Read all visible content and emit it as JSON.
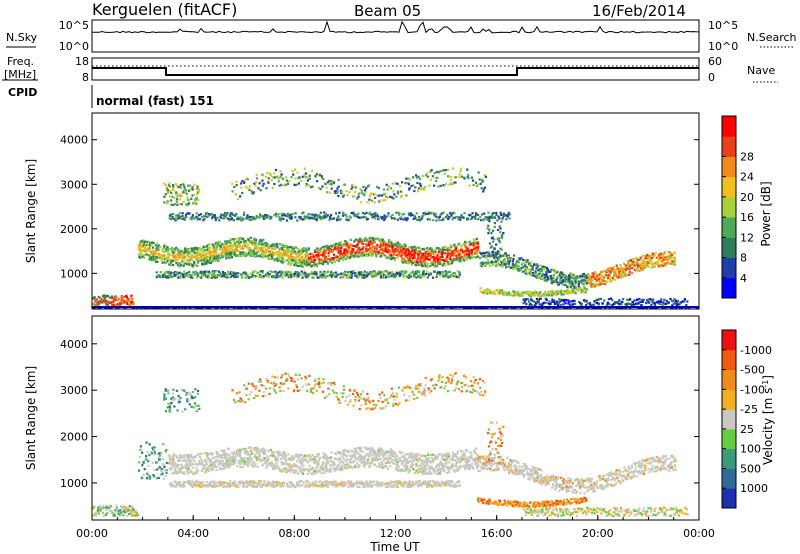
{
  "header": {
    "station": "Kerguelen (fitACF)",
    "beam": "Beam 05",
    "date": "16/Feb/2014"
  },
  "left_labels": {
    "nsky": "N.Sky",
    "freq_line1": "Freq.",
    "freq_line2": "[MHz]",
    "cpid": "CPID"
  },
  "right_labels": {
    "nsearch": "N.Search",
    "nave": "Nave"
  },
  "cpid_text": "normal (fast) 151",
  "noise_panel": {
    "ticks_left": [
      "10^5",
      "10^0"
    ],
    "ticks_right": [
      "10^5",
      "10^0"
    ]
  },
  "freq_panel": {
    "ticks_left": [
      "18",
      "8"
    ],
    "ticks_right": [
      "60",
      "0"
    ]
  },
  "chart_data": [
    {
      "type": "heatmap",
      "title": "",
      "ylabel": "Slant Range [km]",
      "xlabel": "",
      "ylim": [
        200,
        4600
      ],
      "yticks": [
        "1000",
        "2000",
        "3000",
        "4000"
      ],
      "colorbar": {
        "label": "Power [dB]",
        "ticks": [
          "4",
          "8",
          "12",
          "16",
          "20",
          "24",
          "28"
        ],
        "range": [
          0,
          32
        ],
        "colors": [
          "#0000ff",
          "#1f3fa8",
          "#2e7d5a",
          "#4daa57",
          "#a7d23b",
          "#f0c020",
          "#f08a1a",
          "#e8401a",
          "#ff0000"
        ]
      }
    },
    {
      "type": "heatmap",
      "title": "",
      "ylabel": "Slant Range [km]",
      "xlabel": "Time UT",
      "ylim": [
        200,
        4600
      ],
      "yticks": [
        "1000",
        "2000",
        "3000",
        "4000"
      ],
      "xticks": [
        "00:00",
        "04:00",
        "08:00",
        "12:00",
        "16:00",
        "20:00",
        "00:00"
      ],
      "xlim_hours": [
        0,
        24
      ],
      "colorbar": {
        "label": "Velocity [m s",
        "label_exponent": "-1",
        "label_close": "]",
        "ticks": [
          "1000",
          "500",
          "100",
          "25",
          "-25",
          "-100",
          "-500",
          "-1000"
        ],
        "colors": [
          "#1a30b0",
          "#2e6a9a",
          "#3a9a7a",
          "#66cc44",
          "#c8c8c0",
          "#f0b020",
          "#f08a1a",
          "#f05a10",
          "#ee1010"
        ]
      }
    }
  ]
}
